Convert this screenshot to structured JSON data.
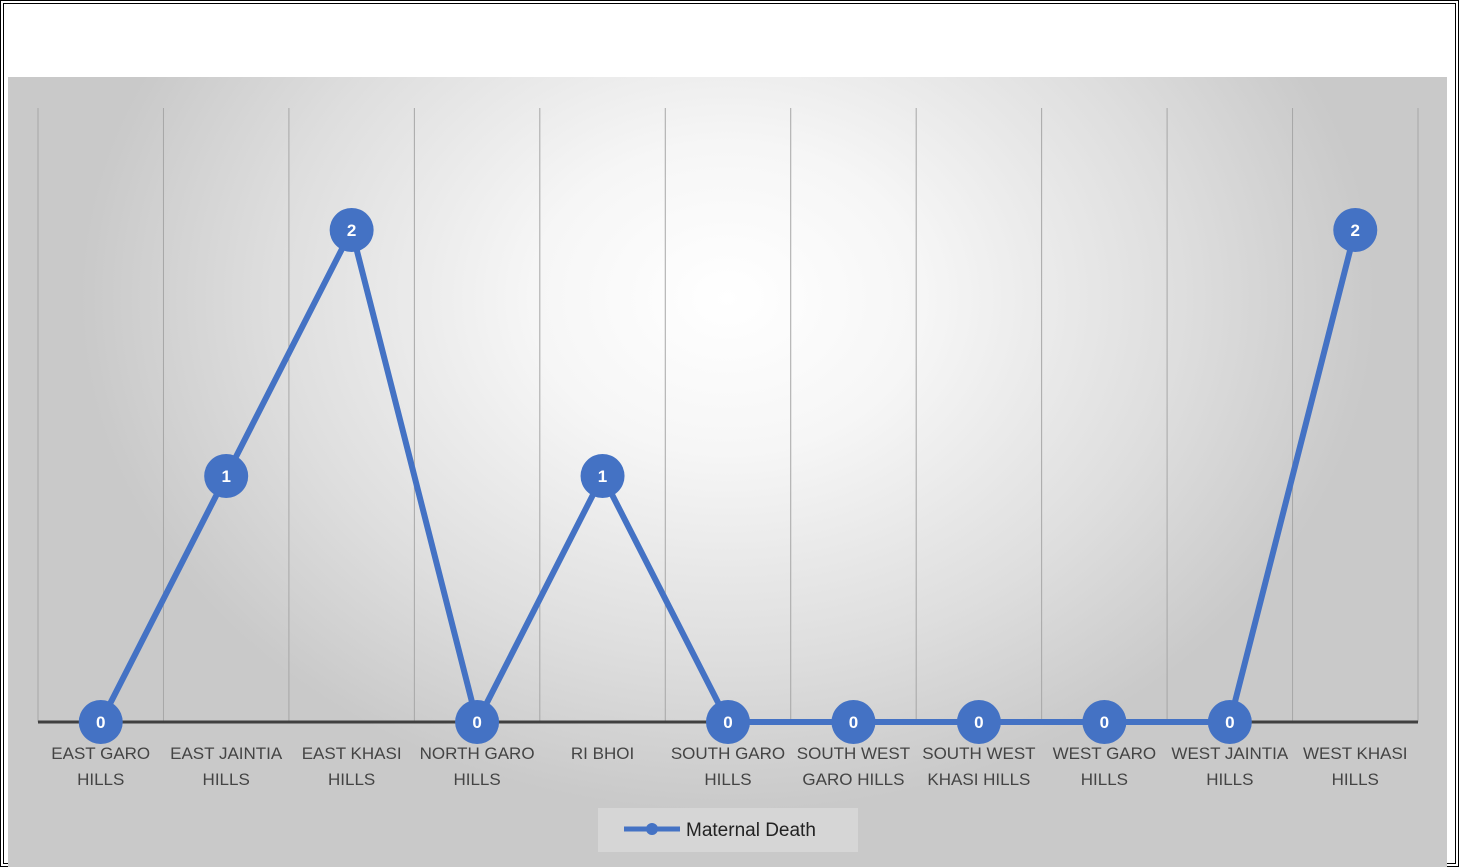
{
  "chart_data": {
    "type": "line",
    "title": "",
    "xlabel": "",
    "ylabel": "",
    "ylim": [
      0,
      2
    ],
    "grid": "vertical",
    "legend_position": "bottom",
    "categories": [
      [
        "EAST GARO",
        "HILLS"
      ],
      [
        "EAST JAINTIA",
        "HILLS"
      ],
      [
        "EAST KHASI",
        "HILLS"
      ],
      [
        "NORTH GARO",
        "HILLS"
      ],
      [
        "RI BHOI"
      ],
      [
        "SOUTH GARO",
        "HILLS"
      ],
      [
        "SOUTH WEST",
        "GARO HILLS"
      ],
      [
        "SOUTH WEST",
        "KHASI HILLS"
      ],
      [
        "WEST GARO",
        "HILLS"
      ],
      [
        "WEST JAINTIA",
        "HILLS"
      ],
      [
        "WEST KHASI",
        "HILLS"
      ]
    ],
    "series": [
      {
        "name": "Maternal Death",
        "color": "#4472c4",
        "values": [
          0,
          1,
          2,
          0,
          1,
          0,
          0,
          0,
          0,
          0,
          2
        ]
      }
    ]
  }
}
